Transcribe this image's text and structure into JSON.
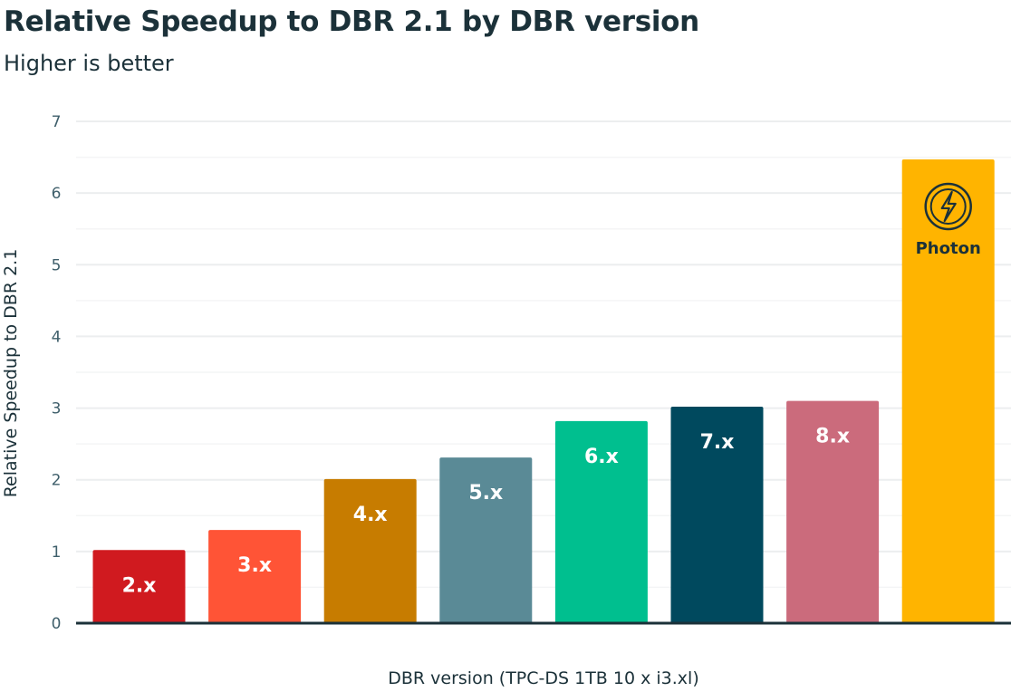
{
  "chart_data": {
    "type": "bar",
    "title": "Relative Speedup to DBR 2.1 by DBR version",
    "subtitle": "Higher is better",
    "xlabel": "DBR version (TPC-DS 1TB 10 x i3.xl)",
    "ylabel": "Relative Speedup to DBR 2.1",
    "ylim": [
      0,
      7
    ],
    "yticks": [
      0,
      1,
      2,
      3,
      4,
      5,
      6,
      7
    ],
    "grid": true,
    "categories": [
      "2.x",
      "3.x",
      "4.x",
      "5.x",
      "6.x",
      "7.x",
      "8.x",
      "Photon"
    ],
    "values": [
      1.02,
      1.3,
      2.01,
      2.31,
      2.82,
      3.02,
      3.1,
      6.47
    ],
    "colors": [
      "#d01a1f",
      "#ff5436",
      "#c77c00",
      "#5a8a96",
      "#00bf8f",
      "#00495e",
      "#cb6b7c",
      "#ffb400"
    ],
    "photon_icon": "lightning-bolt-icon"
  }
}
